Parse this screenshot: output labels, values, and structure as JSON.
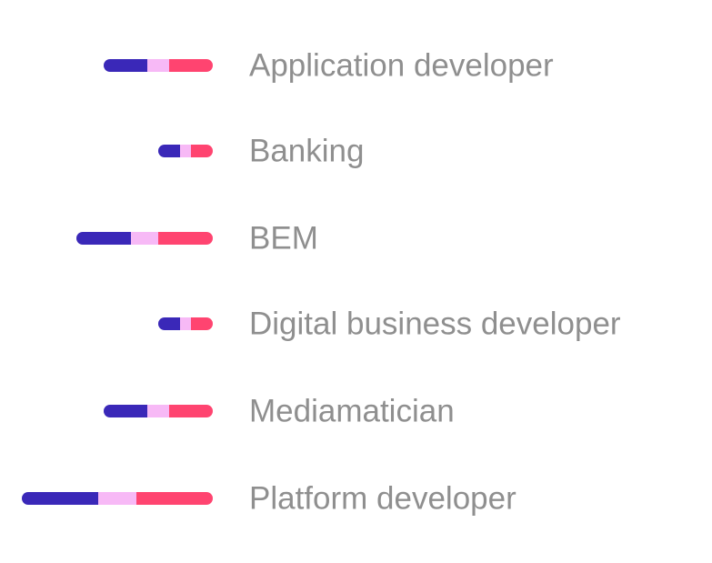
{
  "chart_data": {
    "type": "bar",
    "orientation": "horizontal-stacked",
    "categories": [
      "Application developer",
      "Banking",
      "BEM",
      "Digital business developer",
      "Mediamatician",
      "Platform developer"
    ],
    "series": [
      {
        "color": "#3a28b8",
        "values": [
          4,
          2,
          5,
          2,
          4,
          7
        ]
      },
      {
        "color": "#f7b9f6",
        "values": [
          2,
          1,
          2.5,
          1,
          2,
          3.5
        ]
      },
      {
        "color": "#ff4470",
        "values": [
          4,
          2,
          5,
          2,
          4,
          7
        ]
      }
    ],
    "xlim": [
      0,
      17.5
    ],
    "grid": false,
    "legend": "none"
  }
}
